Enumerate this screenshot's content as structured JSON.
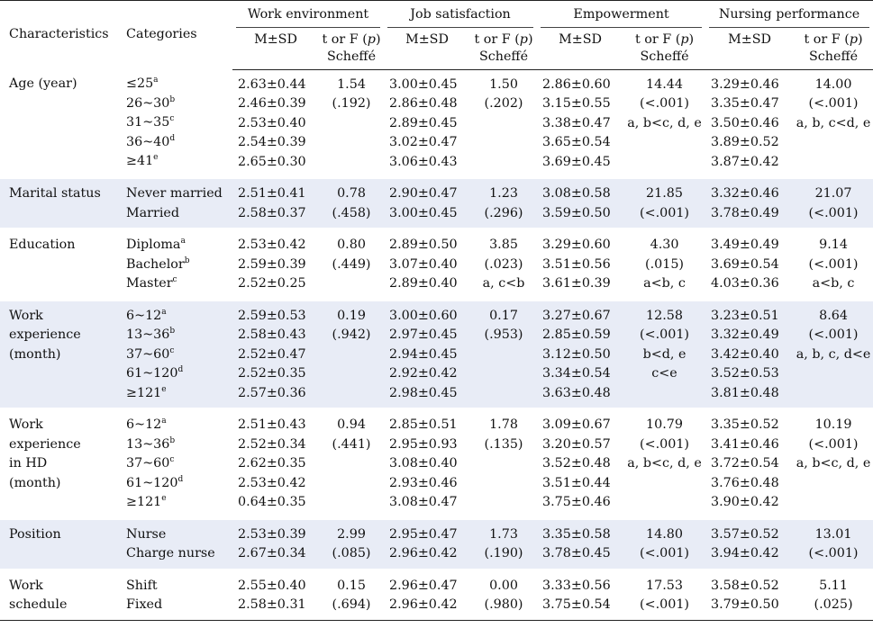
{
  "header": {
    "characteristics": "Characteristics",
    "categories": "Categories",
    "groups": [
      "Work environment",
      "Job satisfaction",
      "Empowerment",
      "Nursing performance"
    ],
    "ms_label": "M±SD",
    "stat_label_line1": "t or F (",
    "stat_label_p": "p",
    "stat_label_close": ")",
    "stat_label_line2": "Scheffé"
  },
  "rows": [
    {
      "characteristic": [
        "Age (year)"
      ],
      "categories": [
        {
          "text": "≤25",
          "sup": "a"
        },
        {
          "text": "26~30",
          "sup": "b"
        },
        {
          "text": "31~35",
          "sup": "c"
        },
        {
          "text": "36~40",
          "sup": "d"
        },
        {
          "text": "≥41",
          "sup": "e"
        }
      ],
      "work_env_ms": [
        "2.63±0.44",
        "2.46±0.39",
        "2.53±0.40",
        "2.54±0.39",
        "2.65±0.30"
      ],
      "work_env_stat": [
        "1.54",
        "(.192)"
      ],
      "job_sat_ms": [
        "3.00±0.45",
        "2.86±0.48",
        "2.89±0.45",
        "3.02±0.47",
        "3.06±0.43"
      ],
      "job_sat_stat": [
        "1.50",
        "(.202)"
      ],
      "emp_ms": [
        "2.86±0.60",
        "3.15±0.55",
        "3.38±0.47",
        "3.65±0.54",
        "3.69±0.45"
      ],
      "emp_stat": [
        "14.44",
        "(<.001)",
        "a, b<c, d, e"
      ],
      "perf_ms": [
        "3.29±0.46",
        "3.35±0.47",
        "3.50±0.46",
        "3.89±0.52",
        "3.87±0.42"
      ],
      "perf_stat": [
        "14.00",
        "(<.001)",
        "a, b, c<d, e"
      ]
    },
    {
      "characteristic": [
        "Marital status"
      ],
      "categories": [
        {
          "text": "Never married",
          "sup": ""
        },
        {
          "text": "Married",
          "sup": ""
        }
      ],
      "work_env_ms": [
        "2.51±0.41",
        "2.58±0.37"
      ],
      "work_env_stat": [
        "0.78",
        "(.458)"
      ],
      "job_sat_ms": [
        "2.90±0.47",
        "3.00±0.45"
      ],
      "job_sat_stat": [
        "1.23",
        "(.296)"
      ],
      "emp_ms": [
        "3.08±0.58",
        "3.59±0.50"
      ],
      "emp_stat": [
        "21.85",
        "(<.001)"
      ],
      "perf_ms": [
        "3.32±0.46",
        "3.78±0.49"
      ],
      "perf_stat": [
        "21.07",
        "(<.001)"
      ]
    },
    {
      "characteristic": [
        "Education"
      ],
      "categories": [
        {
          "text": "Diploma",
          "sup": "a"
        },
        {
          "text": "Bachelor",
          "sup": "b"
        },
        {
          "text": "Master",
          "sup": "c"
        }
      ],
      "work_env_ms": [
        "2.53±0.42",
        "2.59±0.39",
        "2.52±0.25"
      ],
      "work_env_stat": [
        "0.80",
        "(.449)"
      ],
      "job_sat_ms": [
        "2.89±0.50",
        "3.07±0.40",
        "2.89±0.40"
      ],
      "job_sat_stat": [
        "3.85",
        "(.023)",
        "a, c<b"
      ],
      "emp_ms": [
        "3.29±0.60",
        "3.51±0.56",
        "3.61±0.39"
      ],
      "emp_stat": [
        "4.30",
        "(.015)",
        "a<b, c"
      ],
      "perf_ms": [
        "3.49±0.49",
        "3.69±0.54",
        "4.03±0.36"
      ],
      "perf_stat": [
        "9.14",
        "(<.001)",
        "a<b, c"
      ]
    },
    {
      "characteristic": [
        "Work",
        "experience",
        "(month)"
      ],
      "categories": [
        {
          "text": "6~12",
          "sup": "a"
        },
        {
          "text": "13~36",
          "sup": "b"
        },
        {
          "text": "37~60",
          "sup": "c"
        },
        {
          "text": "61~120",
          "sup": "d"
        },
        {
          "text": "≥121",
          "sup": "e"
        }
      ],
      "work_env_ms": [
        "2.59±0.53",
        "2.58±0.43",
        "2.52±0.47",
        "2.52±0.35",
        "2.57±0.36"
      ],
      "work_env_stat": [
        "0.19",
        "(.942)"
      ],
      "job_sat_ms": [
        "3.00±0.60",
        "2.97±0.45",
        "2.94±0.45",
        "2.92±0.42",
        "2.98±0.45"
      ],
      "job_sat_stat": [
        "0.17",
        "(.953)"
      ],
      "emp_ms": [
        "3.27±0.67",
        "2.85±0.59",
        "3.12±0.50",
        "3.34±0.54",
        "3.63±0.48"
      ],
      "emp_stat": [
        "12.58",
        "(<.001)",
        "b<d, e",
        "c<e"
      ],
      "perf_ms": [
        "3.23±0.51",
        "3.32±0.49",
        "3.42±0.40",
        "3.52±0.53",
        "3.81±0.48"
      ],
      "perf_stat": [
        "8.64",
        "(<.001)",
        "a, b, c, d<e"
      ]
    },
    {
      "characteristic": [
        "Work",
        "experience",
        "in HD",
        "(month)"
      ],
      "categories": [
        {
          "text": "6~12",
          "sup": "a"
        },
        {
          "text": "13~36",
          "sup": "b"
        },
        {
          "text": "37~60",
          "sup": "c"
        },
        {
          "text": "61~120",
          "sup": "d"
        },
        {
          "text": "≥121",
          "sup": "e"
        }
      ],
      "work_env_ms": [
        "2.51±0.43",
        "2.52±0.34",
        "2.62±0.35",
        "2.53±0.42",
        "0.64±0.35"
      ],
      "work_env_stat": [
        "0.94",
        "(.441)"
      ],
      "job_sat_ms": [
        "2.85±0.51",
        "2.95±0.93",
        "3.08±0.40",
        "2.93±0.46",
        "3.08±0.47"
      ],
      "job_sat_stat": [
        "1.78",
        "(.135)"
      ],
      "emp_ms": [
        "3.09±0.67",
        "3.20±0.57",
        "3.52±0.48",
        "3.51±0.44",
        "3.75±0.46"
      ],
      "emp_stat": [
        "10.79",
        "(<.001)",
        "a, b<c, d, e"
      ],
      "perf_ms": [
        "3.35±0.52",
        "3.41±0.46",
        "3.72±0.54",
        "3.76±0.48",
        "3.90±0.42"
      ],
      "perf_stat": [
        "10.19",
        "(<.001)",
        "a, b<c, d, e"
      ]
    },
    {
      "characteristic": [
        "Position"
      ],
      "categories": [
        {
          "text": "Nurse",
          "sup": ""
        },
        {
          "text": "Charge nurse",
          "sup": ""
        }
      ],
      "work_env_ms": [
        "2.53±0.39",
        "2.67±0.34"
      ],
      "work_env_stat": [
        "2.99",
        "(.085)"
      ],
      "job_sat_ms": [
        "2.95±0.47",
        "2.96±0.42"
      ],
      "job_sat_stat": [
        "1.73",
        "(.190)"
      ],
      "emp_ms": [
        "3.35±0.58",
        "3.78±0.45"
      ],
      "emp_stat": [
        "14.80",
        "(<.001)"
      ],
      "perf_ms": [
        "3.57±0.52",
        "3.94±0.42"
      ],
      "perf_stat": [
        "13.01",
        "(<.001)"
      ]
    },
    {
      "characteristic": [
        "Work",
        "schedule"
      ],
      "categories": [
        {
          "text": "Shift",
          "sup": ""
        },
        {
          "text": "Fixed",
          "sup": ""
        }
      ],
      "work_env_ms": [
        "2.55±0.40",
        "2.58±0.31"
      ],
      "work_env_stat": [
        "0.15",
        "(.694)"
      ],
      "job_sat_ms": [
        "2.96±0.47",
        "2.96±0.42"
      ],
      "job_sat_stat": [
        "0.00",
        "(.980)"
      ],
      "emp_ms": [
        "3.33±0.56",
        "3.75±0.54"
      ],
      "emp_stat": [
        "17.53",
        "(<.001)"
      ],
      "perf_ms": [
        "3.58±0.52",
        "3.79±0.50"
      ],
      "perf_stat": [
        "5.11",
        "(.025)"
      ]
    }
  ]
}
